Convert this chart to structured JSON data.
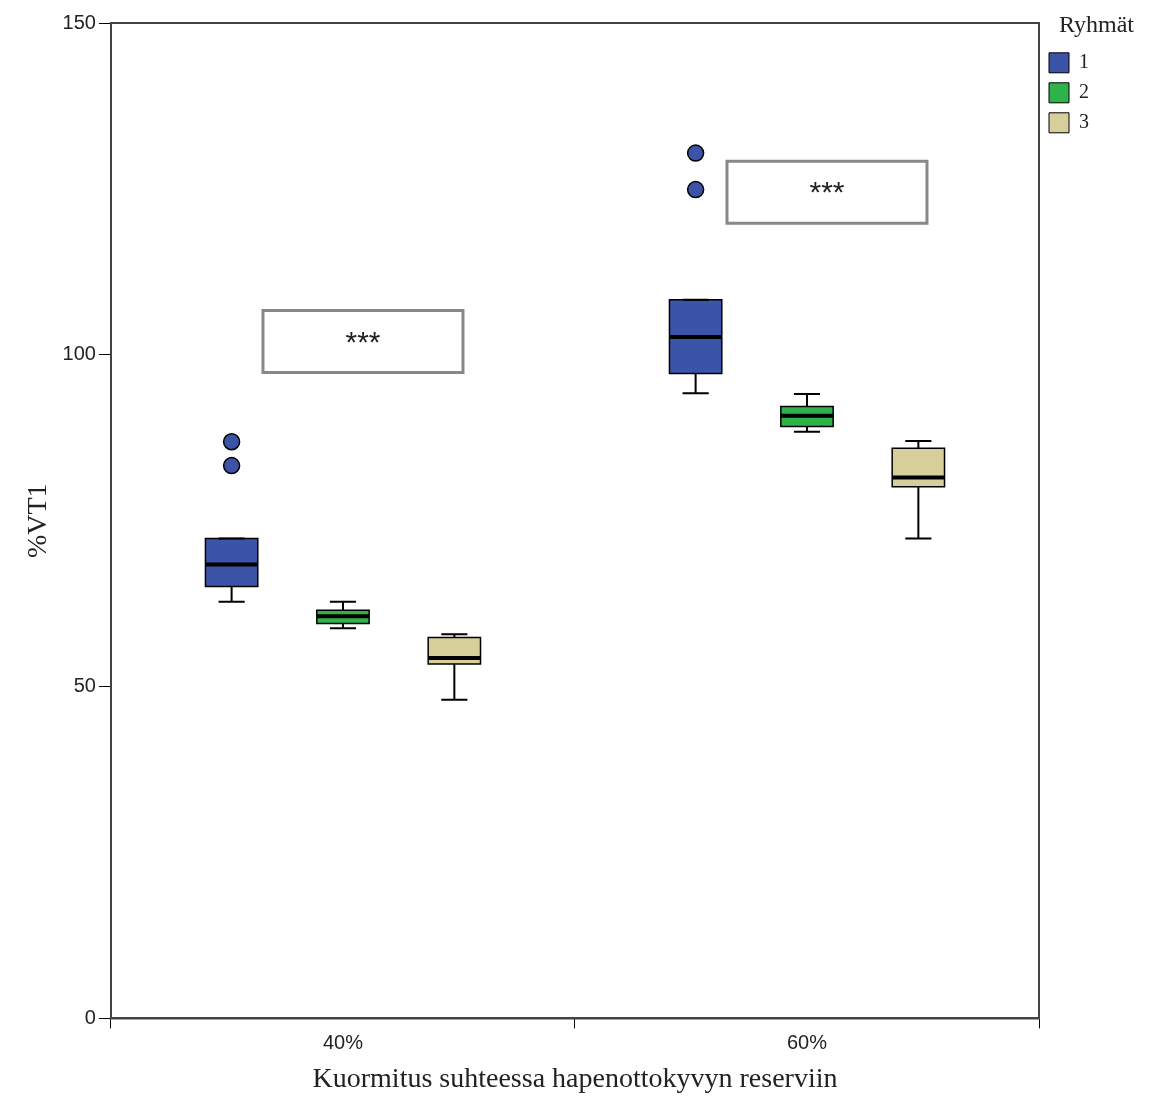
{
  "chart_data": {
    "type": "box",
    "xlabel": "Kuormitus suhteessa hapenottokyvyn reserviin",
    "ylabel": "%VT1",
    "legend_title": "Ryhmät",
    "legend": "top right",
    "categories": [
      "40%",
      "60%"
    ],
    "ylim": [
      0,
      150
    ],
    "yticks": [
      0,
      50,
      100,
      150
    ],
    "grid": false,
    "series": [
      {
        "name": "1",
        "color": "#3c54a8",
        "boxes": [
          {
            "low": 62.8,
            "q1": 65.1,
            "median": 68.4,
            "q3": 72.3,
            "high": 72.3,
            "outliers": [
              83.3,
              86.9
            ]
          },
          {
            "low": 94.2,
            "q1": 97.2,
            "median": 102.7,
            "q3": 108.3,
            "high": 108.3,
            "outliers": [
              124.9,
              130.4
            ]
          }
        ]
      },
      {
        "name": "2",
        "color": "#2db34a",
        "boxes": [
          {
            "low": 58.8,
            "q1": 59.5,
            "median": 60.6,
            "q3": 61.5,
            "high": 62.8
          },
          {
            "low": 88.4,
            "q1": 89.2,
            "median": 90.8,
            "q3": 92.2,
            "high": 94.1
          }
        ]
      },
      {
        "name": "3",
        "color": "#d6cf9a",
        "boxes": [
          {
            "low": 48.0,
            "q1": 53.4,
            "median": 54.3,
            "q3": 57.4,
            "high": 57.9
          },
          {
            "low": 72.3,
            "q1": 80.1,
            "median": 81.5,
            "q3": 85.9,
            "high": 87.0
          }
        ]
      }
    ],
    "annotations": [
      "***",
      "***"
    ]
  }
}
